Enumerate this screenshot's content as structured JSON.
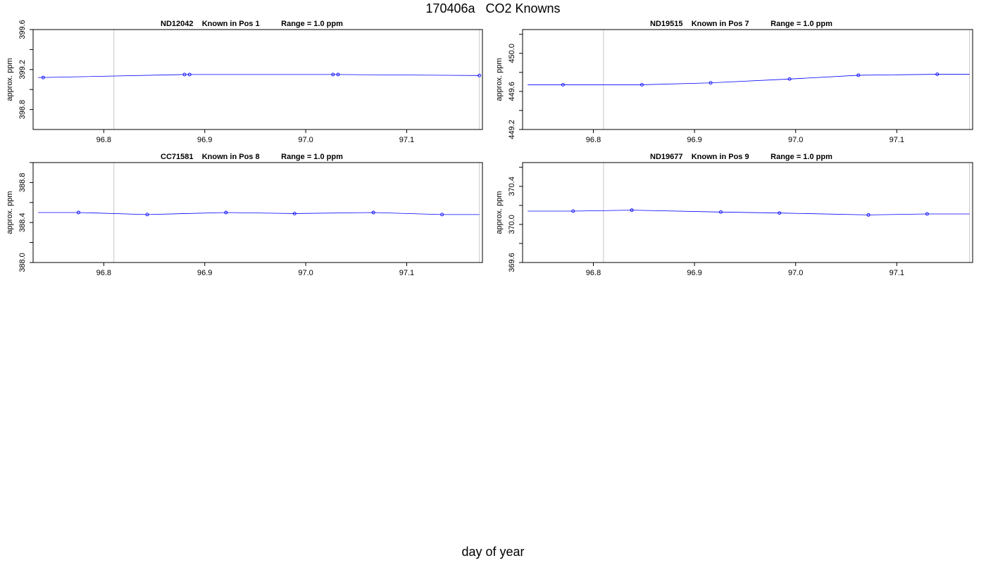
{
  "title": "170406a   CO2 Knowns",
  "xlabel": "day of year",
  "colors": {
    "series": "#0000ff",
    "axis": "#000000",
    "vline": "#c8c8c8"
  },
  "chart_data": [
    {
      "type": "line",
      "title": "ND12042    Known in Pos 1          Range = 1.0 ppm",
      "ylabel": "approx. ppm",
      "xlim": [
        96.73,
        97.175
      ],
      "ylim": [
        398.6,
        399.6
      ],
      "xticks": [
        96.8,
        96.9,
        97.0,
        97.1
      ],
      "yticks": [
        398.8,
        399.2,
        399.6
      ],
      "ytick_labels": [
        "398.8",
        "399.2",
        "399.6"
      ],
      "vlines": [
        96.81,
        97.172
      ],
      "x": [
        96.735,
        96.74,
        96.88,
        96.885,
        97.027,
        97.032,
        97.172
      ],
      "y": [
        399.12,
        399.12,
        399.15,
        399.15,
        399.15,
        399.15,
        399.14
      ],
      "markers": [
        false,
        true,
        true,
        true,
        true,
        true,
        true
      ]
    },
    {
      "type": "line",
      "title": "ND19515    Known in Pos 7          Range = 1.0 ppm",
      "ylabel": "approx. ppm",
      "xlim": [
        96.73,
        97.175
      ],
      "ylim": [
        449.2,
        450.25
      ],
      "xticks": [
        96.8,
        96.9,
        97.0,
        97.1
      ],
      "yticks": [
        449.2,
        449.6,
        450.0
      ],
      "ytick_labels": [
        "449.2",
        "449.6",
        "450.0"
      ],
      "vlines": [
        96.81,
        97.172
      ],
      "x": [
        96.735,
        96.77,
        96.848,
        96.916,
        96.994,
        97.062,
        97.14,
        97.172
      ],
      "y": [
        449.67,
        449.67,
        449.67,
        449.69,
        449.73,
        449.77,
        449.78,
        449.78
      ],
      "markers": [
        false,
        true,
        true,
        true,
        true,
        true,
        true,
        false
      ]
    },
    {
      "type": "line",
      "title": "CC71581    Known in Pos 8          Range = 1.0 ppm",
      "ylabel": "approx. ppm",
      "xlim": [
        96.73,
        97.175
      ],
      "ylim": [
        388.0,
        389.0
      ],
      "xticks": [
        96.8,
        96.9,
        97.0,
        97.1
      ],
      "yticks": [
        388.0,
        388.4,
        388.8
      ],
      "ytick_labels": [
        "388.0",
        "388.4",
        "388.8"
      ],
      "vlines": [
        96.81,
        97.172
      ],
      "x": [
        96.735,
        96.775,
        96.843,
        96.921,
        96.989,
        97.067,
        97.135,
        97.172
      ],
      "y": [
        388.5,
        388.5,
        388.48,
        388.5,
        388.49,
        388.5,
        388.48,
        388.48
      ],
      "markers": [
        false,
        true,
        true,
        true,
        true,
        true,
        true,
        false
      ]
    },
    {
      "type": "line",
      "title": "ND19677    Known in Pos 9          Range = 1.0 ppm",
      "ylabel": "approx. ppm",
      "xlim": [
        96.73,
        97.175
      ],
      "ylim": [
        369.6,
        370.65
      ],
      "xticks": [
        96.8,
        96.9,
        97.0,
        97.1
      ],
      "yticks": [
        369.6,
        370.0,
        370.4
      ],
      "ytick_labels": [
        "369.6",
        "370.0",
        "370.4"
      ],
      "vlines": [
        96.81,
        97.172
      ],
      "x": [
        96.735,
        96.78,
        96.838,
        96.926,
        96.984,
        97.072,
        97.13,
        97.172
      ],
      "y": [
        370.14,
        370.14,
        370.15,
        370.13,
        370.12,
        370.1,
        370.11,
        370.11
      ],
      "markers": [
        false,
        true,
        true,
        true,
        true,
        true,
        true,
        false
      ]
    }
  ]
}
